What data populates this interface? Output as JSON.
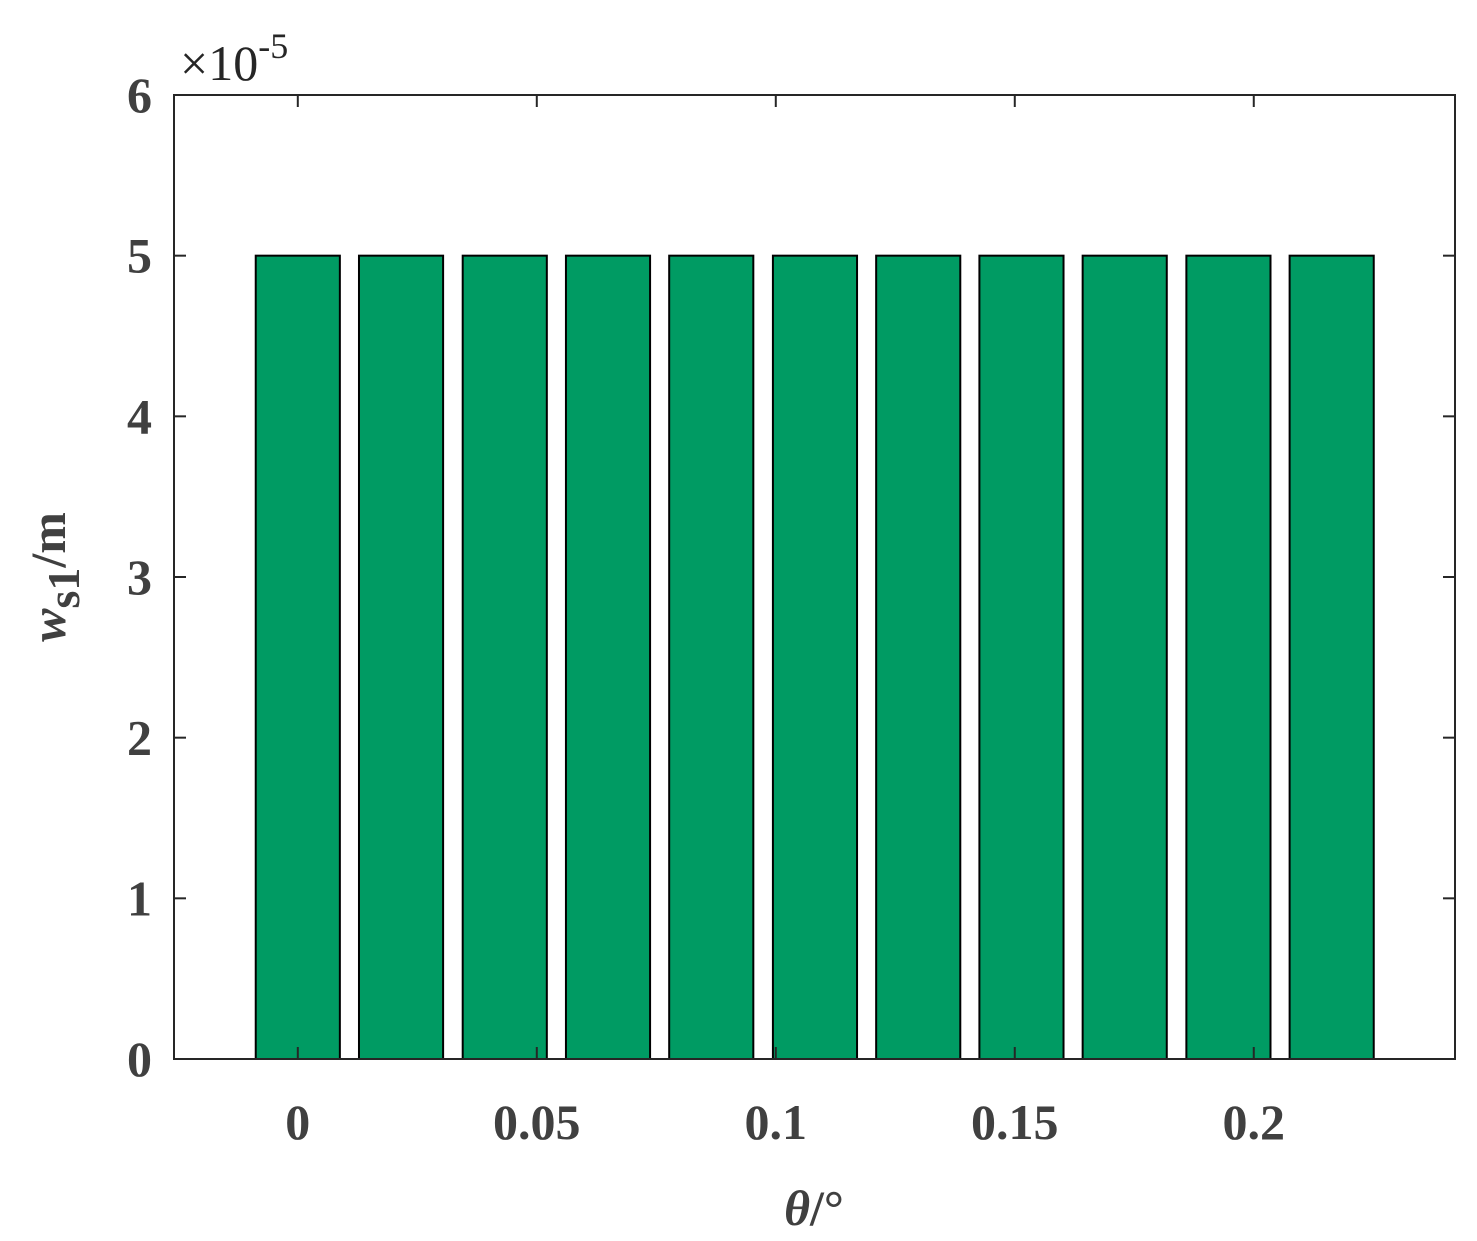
{
  "chart_data": {
    "type": "bar",
    "x": [
      0,
      0.0216,
      0.0433,
      0.0649,
      0.0865,
      0.1082,
      0.1298,
      0.1514,
      0.173,
      0.1947,
      0.2163
    ],
    "values": [
      5,
      5,
      5,
      5,
      5,
      5,
      5,
      5,
      5,
      5,
      5
    ],
    "color": "#009b63",
    "bar_width": 0.0176,
    "xlim": [
      -0.0259,
      0.2421
    ],
    "xticks": [
      0,
      0.05,
      0.1,
      0.15,
      0.2
    ],
    "ylim": [
      0,
      6
    ],
    "yticks": [
      0,
      1,
      2,
      3,
      4,
      5,
      6
    ],
    "y_multiplier": {
      "base": "×10",
      "exponent": "-5"
    },
    "xlabel": {
      "symbol": "θ",
      "unit": "/°"
    },
    "ylabel": {
      "symbol": "w",
      "subscript": "s1",
      "unit": "/m"
    },
    "grid": false
  }
}
